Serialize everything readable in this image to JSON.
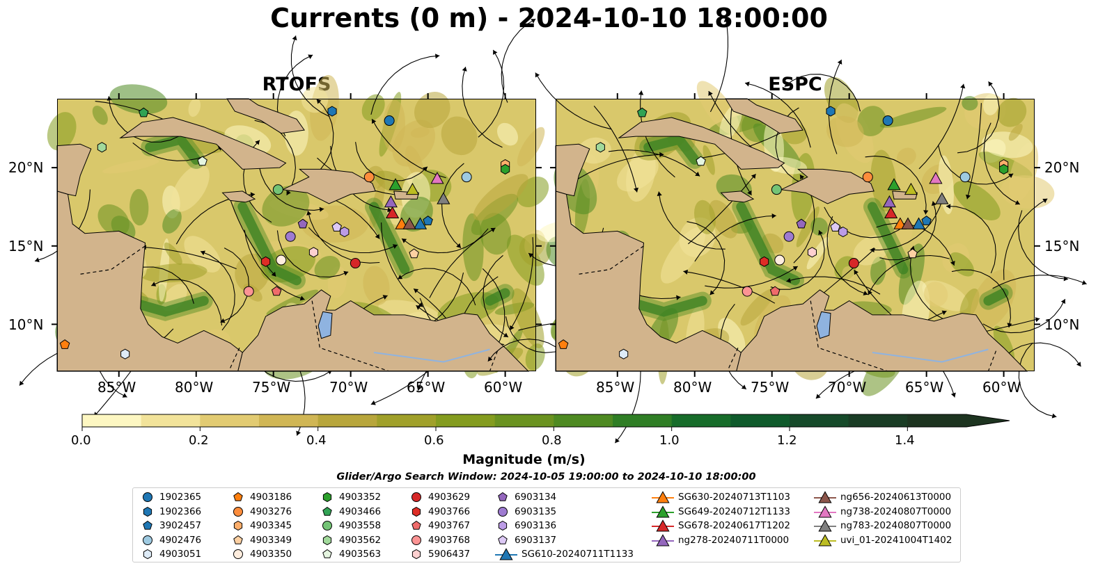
{
  "title": "Currents (0 m) - 2024-10-10 18:00:00",
  "panels": [
    {
      "title": "RTOFS"
    },
    {
      "title": "ESPC"
    }
  ],
  "axes": {
    "lat_ticks": [
      {
        "label": "20°N",
        "value": 20
      },
      {
        "label": "15°N",
        "value": 15
      },
      {
        "label": "10°N",
        "value": 10
      }
    ],
    "lon_ticks": [
      {
        "label": "85°W",
        "value": -85
      },
      {
        "label": "80°W",
        "value": -80
      },
      {
        "label": "75°W",
        "value": -75
      },
      {
        "label": "70°W",
        "value": -70
      },
      {
        "label": "65°W",
        "value": -65
      },
      {
        "label": "60°W",
        "value": -60
      }
    ],
    "lon_range": [
      -89,
      -58
    ],
    "lat_range": [
      7,
      24.4
    ]
  },
  "colorbar": {
    "label": "Magnitude (m/s)",
    "ticks": [
      "0.0",
      "0.2",
      "0.4",
      "0.6",
      "0.8",
      "1.0",
      "1.2",
      "1.4"
    ],
    "range": [
      0,
      1.5
    ],
    "extend": "max",
    "colors": [
      "#fdf7c2",
      "#f2e39a",
      "#e2cb72",
      "#d0b655",
      "#b8a63c",
      "#a0a02a",
      "#849c1f",
      "#6a9220",
      "#4e8a22",
      "#2f7e25",
      "#176c2a",
      "#0f5a2b",
      "#164a2a",
      "#1a3d25",
      "#1d3420"
    ]
  },
  "search_window": "Glider/Argo Search Window: 2024-10-05 19:00:00 to 2024-10-10 18:00:00",
  "legend": [
    {
      "label": "1902365",
      "marker": "circle",
      "color": "#1f77b4"
    },
    {
      "label": "1902366",
      "marker": "hexagon",
      "color": "#1f77b4"
    },
    {
      "label": "3902457",
      "marker": "pentagon",
      "color": "#1f77b4"
    },
    {
      "label": "4902476",
      "marker": "circle",
      "color": "#9ecae1"
    },
    {
      "label": "4903051",
      "marker": "hexagon",
      "color": "#deebf7"
    },
    {
      "label": "4903186",
      "marker": "pentagon",
      "color": "#ff7f0e"
    },
    {
      "label": "4903276",
      "marker": "circle",
      "color": "#fd8d3c"
    },
    {
      "label": "4903345",
      "marker": "hexagon",
      "color": "#fdae6b"
    },
    {
      "label": "4903349",
      "marker": "pentagon",
      "color": "#fdd0a2"
    },
    {
      "label": "4903350",
      "marker": "circle",
      "color": "#feedde"
    },
    {
      "label": "4903352",
      "marker": "hexagon",
      "color": "#2ca02c"
    },
    {
      "label": "4903466",
      "marker": "pentagon",
      "color": "#31a354"
    },
    {
      "label": "4903558",
      "marker": "circle",
      "color": "#74c476"
    },
    {
      "label": "4903562",
      "marker": "hexagon",
      "color": "#a1d99b"
    },
    {
      "label": "4903563",
      "marker": "pentagon",
      "color": "#e5f5e0"
    },
    {
      "label": "4903629",
      "marker": "circle",
      "color": "#d62728"
    },
    {
      "label": "4903766",
      "marker": "hexagon",
      "color": "#de2d26"
    },
    {
      "label": "4903767",
      "marker": "pentagon",
      "color": "#ef6b6b"
    },
    {
      "label": "4903768",
      "marker": "circle",
      "color": "#fc9494"
    },
    {
      "label": "5906437",
      "marker": "hexagon",
      "color": "#fdd0d0"
    },
    {
      "label": "6903134",
      "marker": "pentagon",
      "color": "#9467bd"
    },
    {
      "label": "6903135",
      "marker": "circle",
      "color": "#9e7bd1"
    },
    {
      "label": "6903136",
      "marker": "hexagon",
      "color": "#bc9ce6"
    },
    {
      "label": "6903137",
      "marker": "pentagon",
      "color": "#ddc9f5"
    },
    {
      "label": "SG610-20240711T1133",
      "marker": "triangle-line",
      "color": "#1f77b4"
    },
    {
      "label": "SG630-20240713T1103",
      "marker": "triangle-line",
      "color": "#ff7f0e"
    },
    {
      "label": "SG649-20240712T1133",
      "marker": "triangle-line",
      "color": "#2ca02c"
    },
    {
      "label": "SG678-20240617T1202",
      "marker": "triangle-line",
      "color": "#d62728"
    },
    {
      "label": "ng278-20240711T0000",
      "marker": "triangle-line",
      "color": "#9467bd"
    },
    {
      "label": "ng656-20240613T0000",
      "marker": "triangle-line",
      "color": "#8c564b"
    },
    {
      "label": "ng738-20240807T0000",
      "marker": "triangle-line",
      "color": "#e377c2"
    },
    {
      "label": "ng783-20240807T0000",
      "marker": "triangle-line",
      "color": "#7f7f7f"
    },
    {
      "label": "uvi_01-20241004T1402",
      "marker": "triangle-line",
      "color": "#bcbd22"
    }
  ],
  "observations": [
    {
      "id": "1902365",
      "lon": -67.5,
      "lat": 23.0
    },
    {
      "id": "1902366",
      "lon": -71.2,
      "lat": 23.6
    },
    {
      "id": "3902457",
      "lon": -65.0,
      "lat": 16.6
    },
    {
      "id": "4902476",
      "lon": -62.5,
      "lat": 19.4
    },
    {
      "id": "4903051",
      "lon": -84.6,
      "lat": 8.1
    },
    {
      "id": "4903186",
      "lon": -88.5,
      "lat": 8.7
    },
    {
      "id": "4903276",
      "lon": -68.8,
      "lat": 19.4
    },
    {
      "id": "4903345",
      "lon": -60.0,
      "lat": 20.2
    },
    {
      "id": "4903349",
      "lon": -65.9,
      "lat": 14.5
    },
    {
      "id": "4903350",
      "lon": -74.5,
      "lat": 14.1
    },
    {
      "id": "4903352",
      "lon": -60.0,
      "lat": 19.9
    },
    {
      "id": "4903466",
      "lon": -83.4,
      "lat": 23.5
    },
    {
      "id": "4903558",
      "lon": -74.7,
      "lat": 18.6
    },
    {
      "id": "4903562",
      "lon": -86.1,
      "lat": 21.3
    },
    {
      "id": "4903563",
      "lon": -79.6,
      "lat": 20.4
    },
    {
      "id": "4903629",
      "lon": -69.7,
      "lat": 13.9
    },
    {
      "id": "4903766",
      "lon": -75.5,
      "lat": 14.0
    },
    {
      "id": "4903767",
      "lon": -74.8,
      "lat": 12.1
    },
    {
      "id": "4903768",
      "lon": -76.6,
      "lat": 12.1
    },
    {
      "id": "5906437",
      "lon": -72.4,
      "lat": 14.6
    },
    {
      "id": "6903134",
      "lon": -73.1,
      "lat": 16.4
    },
    {
      "id": "6903135",
      "lon": -73.9,
      "lat": 15.6
    },
    {
      "id": "6903136",
      "lon": -70.4,
      "lat": 15.9
    },
    {
      "id": "6903137",
      "lon": -70.9,
      "lat": 16.2
    },
    {
      "id": "SG610-20240711T1133",
      "lon": -65.5,
      "lat": 16.4
    },
    {
      "id": "SG630-20240713T1103",
      "lon": -66.7,
      "lat": 16.4
    },
    {
      "id": "SG649-20240712T1133",
      "lon": -67.1,
      "lat": 18.9
    },
    {
      "id": "SG678-20240617T1202",
      "lon": -67.3,
      "lat": 17.1
    },
    {
      "id": "ng278-20240711T0000",
      "lon": -67.4,
      "lat": 17.8
    },
    {
      "id": "ng656-20240613T0000",
      "lon": -66.2,
      "lat": 16.4
    },
    {
      "id": "ng738-20240807T0000",
      "lon": -64.4,
      "lat": 19.3
    },
    {
      "id": "ng783-20240807T0000",
      "lon": -64.0,
      "lat": 18.0
    },
    {
      "id": "uvi_01-20241004T1402",
      "lon": -66.0,
      "lat": 18.6
    }
  ]
}
